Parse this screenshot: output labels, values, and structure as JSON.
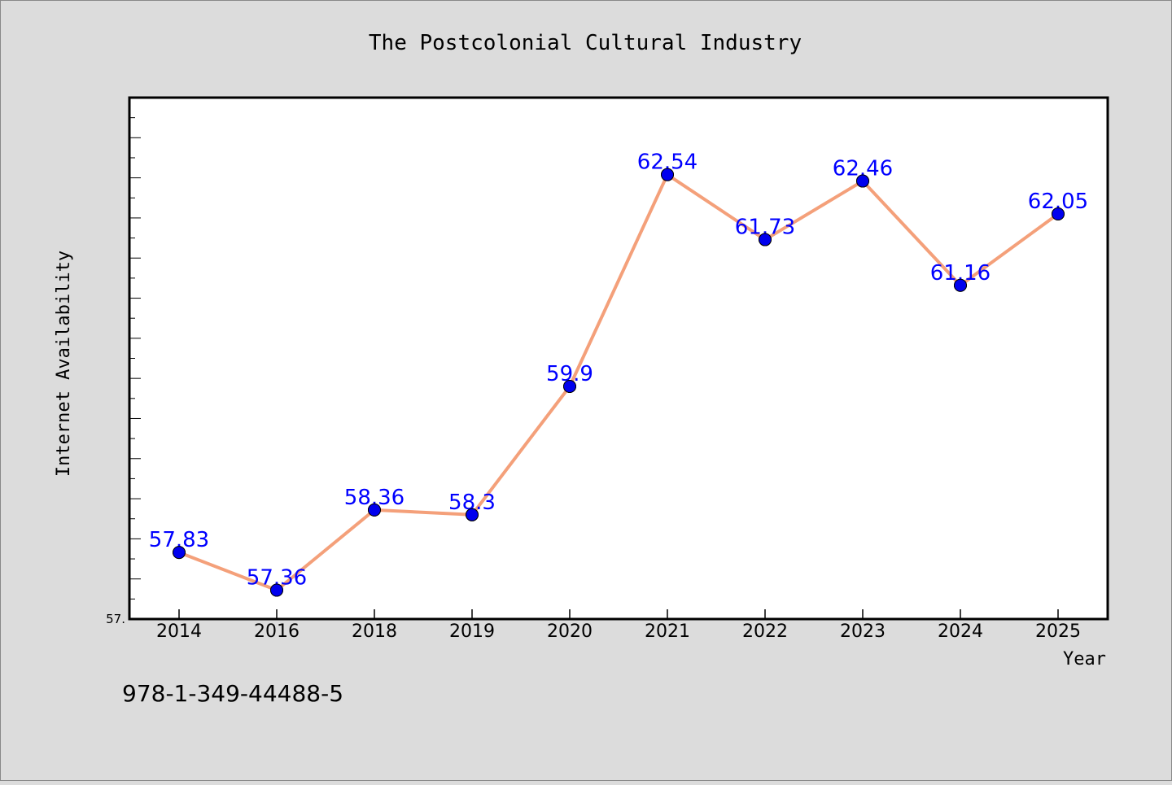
{
  "chart_data": {
    "type": "line",
    "title": "The Postcolonial Cultural Industry",
    "xlabel": "Year",
    "ylabel": "Internet Availability",
    "categories": [
      "2014",
      "2016",
      "2018",
      "2019",
      "2020",
      "2021",
      "2022",
      "2023",
      "2024",
      "2025"
    ],
    "series": [
      {
        "values": [
          57.83,
          57.36,
          58.36,
          58.3,
          59.9,
          62.54,
          61.73,
          62.46,
          61.16,
          62.05
        ],
        "labels": [
          "57.83",
          "57.36",
          "58.36",
          "58.3",
          "59.9",
          "62.54",
          "61.73",
          "62.46",
          "61.16",
          "62.05"
        ]
      }
    ],
    "ylim": [
      57.0,
      63.5
    ],
    "ytick_label": "57.",
    "grid": false,
    "line_color": "#f4a07a",
    "marker_color": "#0000ee",
    "label_color": "#0000ff"
  },
  "footnote": "978-1-349-44488-5"
}
